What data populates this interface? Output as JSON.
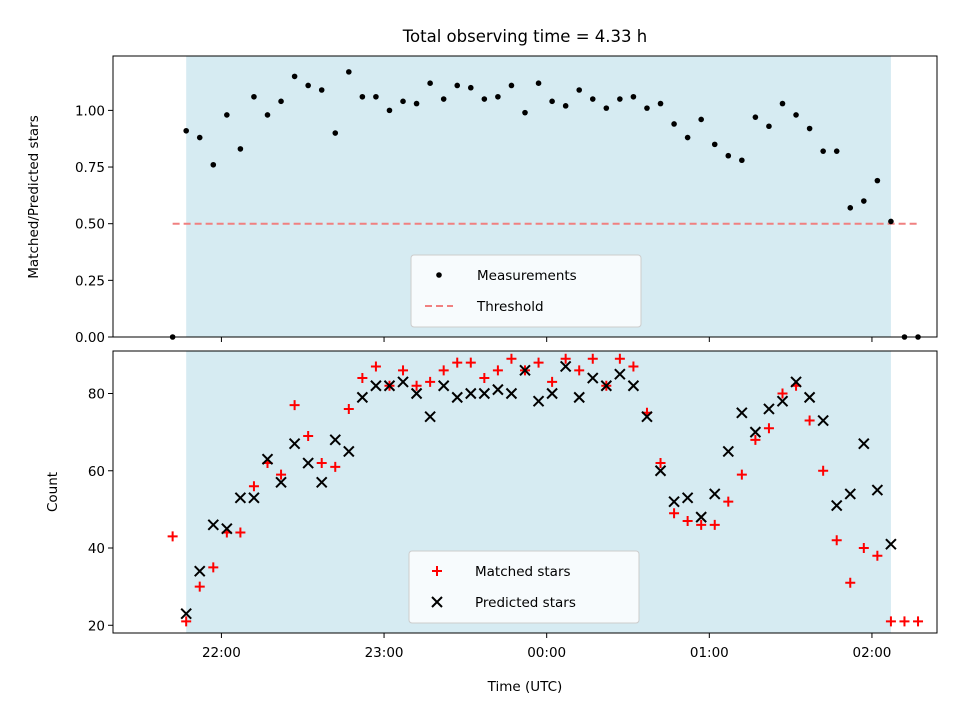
{
  "chart_data": [
    {
      "type": "scatter",
      "title": "Total observing time = 4.33 h",
      "xlabel": "",
      "ylabel": "Matched/Predicted stars",
      "ylim": [
        0,
        1.24
      ],
      "yticks": [
        "0.00",
        "0.25",
        "0.50",
        "0.75",
        "1.00"
      ],
      "xticks": [
        "22:00",
        "23:00",
        "00:00",
        "01:00",
        "02:00"
      ],
      "shaded_span": [
        "21:47",
        "02:07"
      ],
      "shade_color": "#add8e6",
      "threshold": {
        "name": "Threshold",
        "value": 0.5,
        "color": "#f08080",
        "x_range": [
          "21:42",
          "02:17"
        ]
      },
      "legend_position": "lower center",
      "series": [
        {
          "name": "Measurements",
          "color": "#000000",
          "marker": "dot",
          "x": [
            "21:42",
            "21:47",
            "21:52",
            "21:57",
            "22:02",
            "22:07",
            "22:12",
            "22:17",
            "22:22",
            "22:27",
            "22:32",
            "22:37",
            "22:42",
            "22:47",
            "22:52",
            "22:57",
            "23:02",
            "23:07",
            "23:12",
            "23:17",
            "23:22",
            "23:27",
            "23:32",
            "23:37",
            "23:42",
            "23:47",
            "23:52",
            "23:57",
            "00:02",
            "00:07",
            "00:12",
            "00:17",
            "00:22",
            "00:27",
            "00:32",
            "00:37",
            "00:42",
            "00:47",
            "00:52",
            "00:57",
            "01:02",
            "01:07",
            "01:12",
            "01:17",
            "01:22",
            "01:27",
            "01:32",
            "01:37",
            "01:42",
            "01:47",
            "01:52",
            "01:57",
            "02:02",
            "02:07",
            "02:12",
            "02:17"
          ],
          "y": [
            0.0,
            0.91,
            0.88,
            0.76,
            0.98,
            0.83,
            1.06,
            0.98,
            1.04,
            1.15,
            1.11,
            1.09,
            0.9,
            1.17,
            1.06,
            1.06,
            1.0,
            1.04,
            1.03,
            1.12,
            1.05,
            1.11,
            1.1,
            1.05,
            1.06,
            1.11,
            0.99,
            1.12,
            1.04,
            1.02,
            1.09,
            1.05,
            1.01,
            1.05,
            1.06,
            1.01,
            1.03,
            0.94,
            0.88,
            0.96,
            0.85,
            0.8,
            0.78,
            0.97,
            0.93,
            1.03,
            0.98,
            0.92,
            0.82,
            0.82,
            0.57,
            0.6,
            0.69,
            0.51,
            0.0,
            0.0
          ]
        }
      ]
    },
    {
      "type": "scatter",
      "title": "",
      "xlabel": "Time (UTC)",
      "ylabel": "Count",
      "ylim": [
        18,
        91
      ],
      "yticks": [
        "20",
        "40",
        "60",
        "80"
      ],
      "xticks": [
        "22:00",
        "23:00",
        "00:00",
        "01:00",
        "02:00"
      ],
      "shaded_span": [
        "21:47",
        "02:07"
      ],
      "shade_color": "#add8e6",
      "legend_position": "lower center",
      "series": [
        {
          "name": "Matched stars",
          "color": "#ff0000",
          "marker": "plus",
          "x": [
            "21:42",
            "21:47",
            "21:52",
            "21:57",
            "22:02",
            "22:07",
            "22:12",
            "22:17",
            "22:22",
            "22:27",
            "22:32",
            "22:37",
            "22:42",
            "22:47",
            "22:52",
            "22:57",
            "23:02",
            "23:07",
            "23:12",
            "23:17",
            "23:22",
            "23:27",
            "23:32",
            "23:37",
            "23:42",
            "23:47",
            "23:52",
            "23:57",
            "00:02",
            "00:07",
            "00:12",
            "00:17",
            "00:22",
            "00:27",
            "00:32",
            "00:37",
            "00:42",
            "00:47",
            "00:52",
            "00:57",
            "01:02",
            "01:07",
            "01:12",
            "01:17",
            "01:22",
            "01:27",
            "01:32",
            "01:37",
            "01:42",
            "01:47",
            "01:52",
            "01:57",
            "02:02",
            "02:07",
            "02:12",
            "02:17"
          ],
          "y": [
            43,
            21,
            30,
            35,
            44,
            44,
            56,
            62,
            59,
            77,
            69,
            62,
            61,
            76,
            84,
            87,
            82,
            86,
            82,
            83,
            86,
            88,
            88,
            84,
            86,
            89,
            86,
            88,
            83,
            89,
            86,
            89,
            82,
            89,
            87,
            75,
            62,
            49,
            47,
            46,
            46,
            52,
            59,
            68,
            71,
            80,
            82,
            73,
            60,
            42,
            31,
            40,
            38,
            21,
            21,
            21
          ]
        },
        {
          "name": "Predicted stars",
          "color": "#000000",
          "marker": "x",
          "x": [
            "21:47",
            "21:52",
            "21:57",
            "22:02",
            "22:07",
            "22:12",
            "22:17",
            "22:22",
            "22:27",
            "22:32",
            "22:37",
            "22:42",
            "22:47",
            "22:52",
            "22:57",
            "23:02",
            "23:07",
            "23:12",
            "23:17",
            "23:22",
            "23:27",
            "23:32",
            "23:37",
            "23:42",
            "23:47",
            "23:52",
            "23:57",
            "00:02",
            "00:07",
            "00:12",
            "00:17",
            "00:22",
            "00:27",
            "00:32",
            "00:37",
            "00:42",
            "00:47",
            "00:52",
            "00:57",
            "01:02",
            "01:07",
            "01:12",
            "01:17",
            "01:22",
            "01:27",
            "01:32",
            "01:37",
            "01:42",
            "01:47",
            "01:52",
            "01:57",
            "02:02",
            "02:07"
          ],
          "y": [
            23,
            34,
            46,
            45,
            53,
            53,
            63,
            57,
            67,
            62,
            57,
            68,
            65,
            79,
            82,
            82,
            83,
            80,
            74,
            82,
            79,
            80,
            80,
            81,
            80,
            86,
            78,
            80,
            87,
            79,
            84,
            82,
            85,
            82,
            74,
            60,
            52,
            53,
            48,
            54,
            65,
            75,
            70,
            76,
            78,
            83,
            79,
            73,
            51,
            54,
            67,
            55,
            41
          ]
        }
      ]
    }
  ]
}
